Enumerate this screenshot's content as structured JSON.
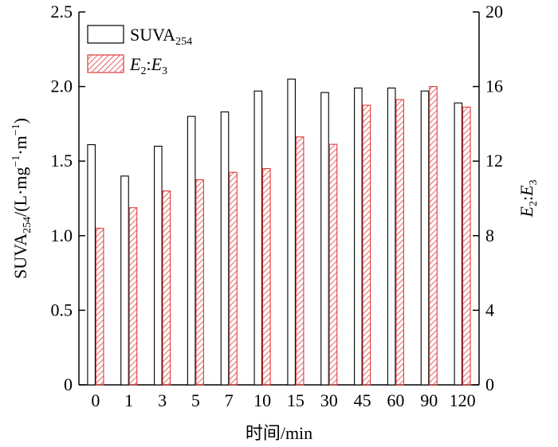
{
  "chart_data": {
    "type": "bar",
    "categories": [
      "0",
      "1",
      "3",
      "5",
      "7",
      "10",
      "15",
      "30",
      "45",
      "60",
      "90",
      "120"
    ],
    "series": [
      {
        "name": "SUVA254",
        "name_main": "SUVA",
        "name_sub": "254",
        "axis": "left",
        "style": "open",
        "values": [
          1.61,
          1.4,
          1.6,
          1.8,
          1.83,
          1.97,
          2.05,
          1.96,
          1.99,
          1.99,
          1.97,
          1.89
        ]
      },
      {
        "name": "E2:E3",
        "name_parts": [
          "E",
          "2",
          ":",
          "E",
          "3"
        ],
        "axis": "right",
        "style": "hatched",
        "color": "#e03a3a",
        "values": [
          8.4,
          9.5,
          10.4,
          11.0,
          11.4,
          11.6,
          13.3,
          12.9,
          15.0,
          15.3,
          16.0,
          14.9
        ]
      }
    ],
    "xlabel": "时间/min",
    "ylabel_left": {
      "prefix": "SUVA",
      "sub": "254",
      "mid": "/(L·mg",
      "sup1": "−1",
      "mid2": "·m",
      "sup2": "−1",
      "suffix": ")"
    },
    "ylabel_right": {
      "parts": [
        "E",
        "2",
        ":",
        "E",
        "3"
      ]
    },
    "ylim_left": [
      0,
      2.5
    ],
    "yticks_left": [
      "0",
      "0.5",
      "1.0",
      "1.5",
      "2.0",
      "2.5"
    ],
    "ylim_right": [
      0,
      20
    ],
    "yticks_right": [
      "0",
      "4",
      "8",
      "12",
      "16",
      "20"
    ],
    "legend_position": "top-left",
    "grid": false
  }
}
